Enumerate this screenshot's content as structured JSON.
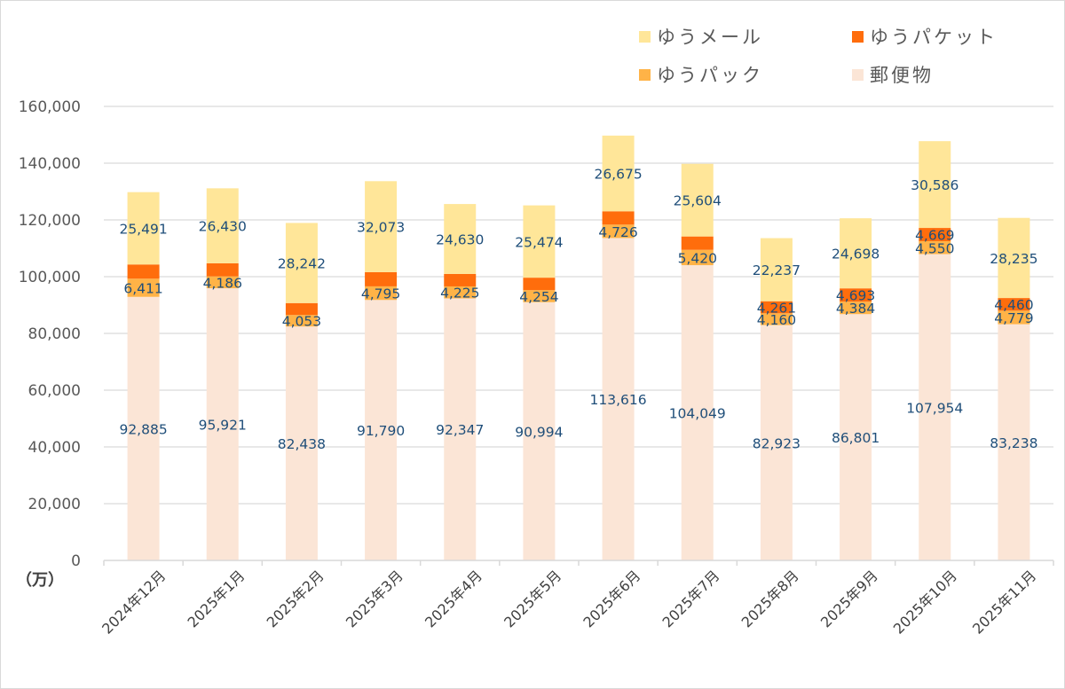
{
  "chart_data": {
    "type": "bar",
    "stacked": true,
    "title": "",
    "xlabel": "",
    "ylabel": "",
    "unit_label": "（万）",
    "ylim": [
      0,
      160000
    ],
    "yticks": [
      0,
      20000,
      40000,
      60000,
      80000,
      100000,
      120000,
      140000,
      160000
    ],
    "ytick_labels": [
      "0",
      "20,000",
      "40,000",
      "60,000",
      "80,000",
      "100,000",
      "120,000",
      "140,000",
      "160,000"
    ],
    "grid": true,
    "legend_position": "top-right",
    "categories": [
      "2024年12月",
      "2025年1月",
      "2025年2月",
      "2025年3月",
      "2025年4月",
      "2025年5月",
      "2025年6月",
      "2025年7月",
      "2025年8月",
      "2025年9月",
      "2025年10月",
      "2025年11月"
    ],
    "series": [
      {
        "name": "郵便物",
        "color": "#FBE5D6",
        "values": [
          92885,
          95921,
          82438,
          91790,
          92347,
          90994,
          113616,
          104049,
          82923,
          86801,
          107954,
          83238
        ],
        "labels_shown": [
          true,
          true,
          true,
          true,
          true,
          true,
          true,
          true,
          true,
          true,
          true,
          true
        ]
      },
      {
        "name": "ゆうパック",
        "color": "#FFB347",
        "values": [
          6411,
          4186,
          4053,
          4795,
          4225,
          4254,
          4726,
          5420,
          4160,
          4384,
          4550,
          4779
        ],
        "labels_shown": [
          true,
          true,
          true,
          true,
          true,
          true,
          true,
          true,
          true,
          true,
          true,
          true
        ]
      },
      {
        "name": "ゆうパケット",
        "color": "#FF6D0C",
        "values": [
          5000,
          4600,
          4200,
          5000,
          4400,
          4400,
          4700,
          4700,
          4261,
          4693,
          4669,
          4460
        ],
        "labels_shown": [
          false,
          false,
          false,
          false,
          false,
          false,
          false,
          false,
          true,
          true,
          true,
          true
        ]
      },
      {
        "name": "ゆうメール",
        "color": "#FFE699",
        "values": [
          25491,
          26430,
          28242,
          32073,
          24630,
          25474,
          26675,
          25604,
          22237,
          24698,
          30586,
          28235
        ],
        "labels_shown": [
          true,
          true,
          true,
          true,
          true,
          true,
          true,
          true,
          true,
          true,
          true,
          true
        ]
      }
    ],
    "legend": [
      {
        "name": "ゆうメール",
        "color": "#FFE699"
      },
      {
        "name": "ゆうパケット",
        "color": "#FF6D0C"
      },
      {
        "name": "ゆうパック",
        "color": "#FFB347"
      },
      {
        "name": "郵便物",
        "color": "#FBE5D6"
      }
    ],
    "label_color": "#1F4E79"
  }
}
